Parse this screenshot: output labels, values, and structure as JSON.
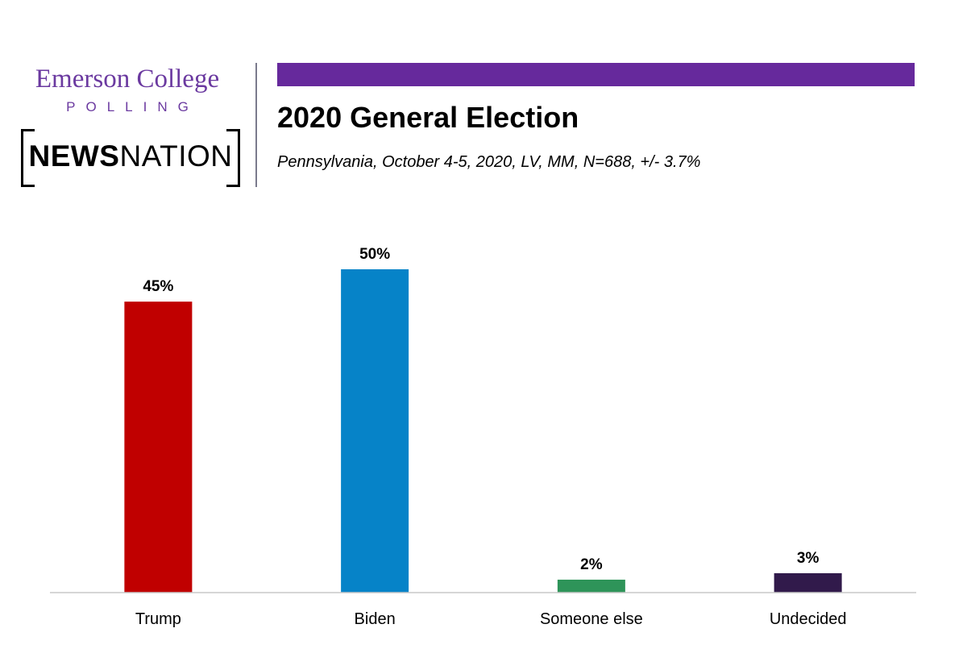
{
  "branding": {
    "emerson_line1": "Emerson College",
    "emerson_line2": "POLLING",
    "newsnation_bold": "NEWS",
    "newsnation_light": "NATION",
    "accent_color": "#66299c"
  },
  "header": {
    "title": "2020 General Election",
    "subtitle": "Pennsylvania, October 4-5, 2020, LV, MM,  N=688, +/-  3.7%"
  },
  "chart_data": {
    "type": "bar",
    "title": "2020 General Election",
    "subtitle": "Pennsylvania, October 4-5, 2020, LV, MM,  N=688, +/-  3.7%",
    "xlabel": "",
    "ylabel": "",
    "categories": [
      "Trump",
      "Biden",
      "Someone else",
      "Undecided"
    ],
    "values": [
      45,
      50,
      2,
      3
    ],
    "value_labels": [
      "45%",
      "50%",
      "2%",
      "3%"
    ],
    "colors": [
      "#c00000",
      "#0683c8",
      "#2e9459",
      "#311a4b"
    ],
    "ylim": [
      0,
      50
    ],
    "grid": false,
    "legend": "none"
  }
}
